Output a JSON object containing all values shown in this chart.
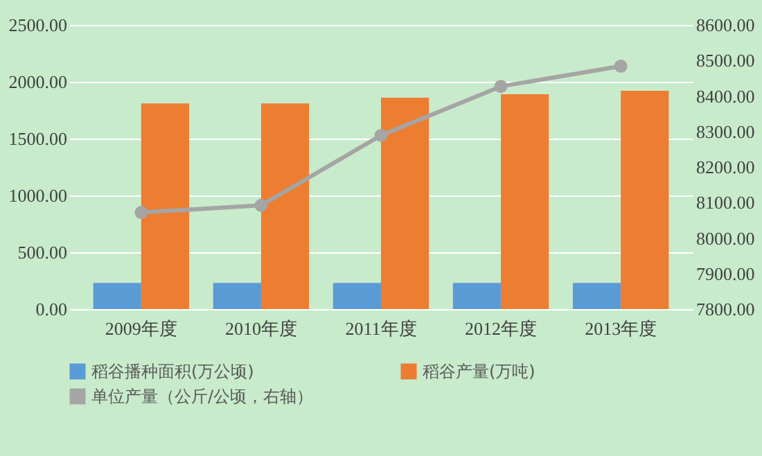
{
  "chart_data": {
    "type": "bar",
    "categories": [
      "2009年度",
      "2010年度",
      "2011年度",
      "2012年度",
      "2013年度"
    ],
    "series": [
      {
        "name": "稻谷播种面积(万公顷)",
        "color": "#5b9bd5",
        "values": [
          230,
          230,
          230,
          230,
          230
        ]
      },
      {
        "name": "稻谷产量(万吨)",
        "color": "#ed7d31",
        "values": [
          1810,
          1810,
          1860,
          1890,
          1920
        ]
      },
      {
        "name": "单位产量（公斤/公顷，右轴）",
        "color": "#a5a5a5",
        "type": "line",
        "axis": "y2",
        "values": [
          8072,
          8092,
          8289,
          8427,
          8484
        ]
      }
    ],
    "ylim": [
      0,
      2500
    ],
    "yticks": [
      {
        "value": 0,
        "label": "0.00"
      },
      {
        "value": 500,
        "label": "500.00"
      },
      {
        "value": 1000,
        "label": "1000.00"
      },
      {
        "value": 1500,
        "label": "1500.00"
      },
      {
        "value": 2000,
        "label": "2000.00"
      },
      {
        "value": 2500,
        "label": "2500.00"
      }
    ],
    "y2lim": [
      7800,
      8600
    ],
    "y2ticks": [
      {
        "value": 7800,
        "label": "7800.00"
      },
      {
        "value": 7900,
        "label": "7900.00"
      },
      {
        "value": 8000,
        "label": "8000.00"
      },
      {
        "value": 8100,
        "label": "8100.00"
      },
      {
        "value": 8200,
        "label": "8200.00"
      },
      {
        "value": 8300,
        "label": "8300.00"
      },
      {
        "value": 8400,
        "label": "8400.00"
      },
      {
        "value": 8500,
        "label": "8500.00"
      },
      {
        "value": 8600,
        "label": "8600.00"
      }
    ],
    "grid": true,
    "legend": "bottom",
    "marker": "circle"
  }
}
